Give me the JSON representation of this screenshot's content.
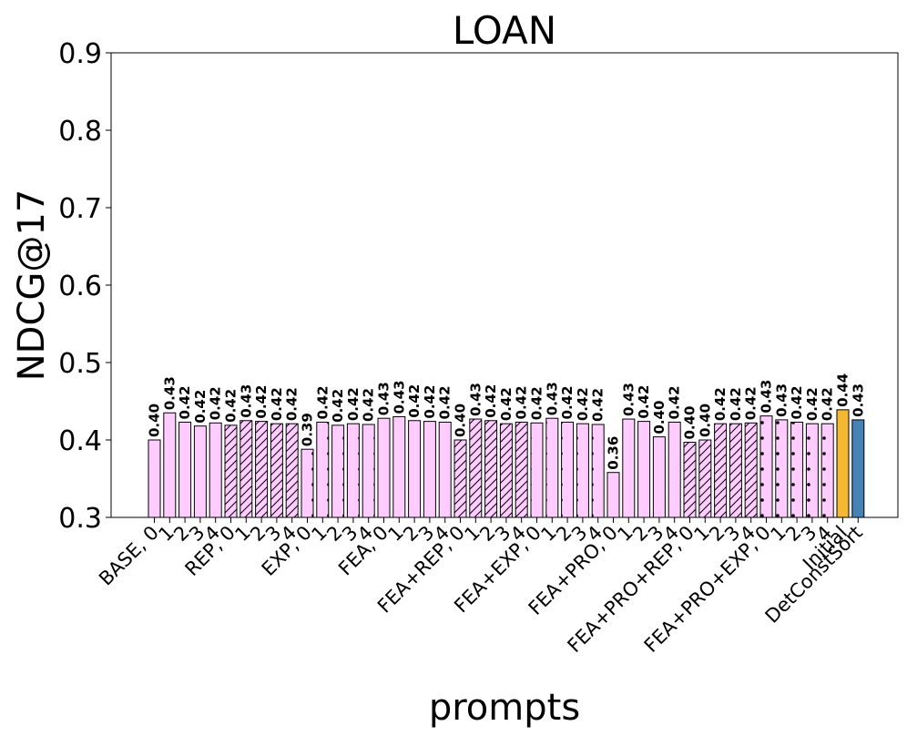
{
  "chart_data": {
    "type": "bar",
    "title": "LOAN",
    "xlabel": "prompts",
    "ylabel": "NDCG@17",
    "ylim": [
      0.3,
      0.9
    ],
    "yticks": [
      "0.3",
      "0.4",
      "0.5",
      "0.6",
      "0.7",
      "0.8",
      "0.9"
    ],
    "grid": false,
    "legend": "none",
    "colors": {
      "prompt_bar": "#ffccff",
      "initial_bar": "#f4b833",
      "detconstsort_bar": "#4682b4",
      "edge": "#000000"
    },
    "categories": [
      "BASE, 0",
      "1",
      "2",
      "3",
      "4",
      "REP, 0",
      "1",
      "2",
      "3",
      "4",
      "EXP, 0",
      "1",
      "2",
      "3",
      "4",
      "FEA, 0",
      "1",
      "2",
      "3",
      "4",
      "FEA+REP, 0",
      "1",
      "2",
      "3",
      "4",
      "FEA+EXP, 0",
      "1",
      "2",
      "3",
      "4",
      "FEA+PRO, 0",
      "1",
      "2",
      "3",
      "4",
      "FEA+PRO+REP, 0",
      "1",
      "2",
      "3",
      "4",
      "FEA+PRO+EXP, 0",
      "1",
      "2",
      "3",
      "4",
      "Initial",
      "DetConstSort"
    ],
    "values": [
      0.4,
      0.435,
      0.423,
      0.418,
      0.422,
      0.419,
      0.425,
      0.424,
      0.421,
      0.421,
      0.388,
      0.423,
      0.419,
      0.421,
      0.42,
      0.428,
      0.43,
      0.425,
      0.424,
      0.423,
      0.4,
      0.427,
      0.425,
      0.421,
      0.423,
      0.422,
      0.428,
      0.423,
      0.421,
      0.42,
      0.358,
      0.427,
      0.424,
      0.404,
      0.423,
      0.397,
      0.4,
      0.421,
      0.421,
      0.422,
      0.431,
      0.426,
      0.423,
      0.421,
      0.421,
      0.439,
      0.426
    ],
    "value_labels": [
      "0.40",
      "0.43",
      "0.42",
      "0.42",
      "0.42",
      "0.42",
      "0.43",
      "0.42",
      "0.42",
      "0.42",
      "0.39",
      "0.42",
      "0.42",
      "0.42",
      "0.42",
      "0.43",
      "0.43",
      "0.42",
      "0.42",
      "0.42",
      "0.40",
      "0.43",
      "0.42",
      "0.42",
      "0.42",
      "0.42",
      "0.43",
      "0.42",
      "0.42",
      "0.42",
      "0.36",
      "0.43",
      "0.42",
      "0.40",
      "0.42",
      "0.40",
      "0.40",
      "0.42",
      "0.42",
      "0.42",
      "0.43",
      "0.43",
      "0.42",
      "0.42",
      "0.42",
      "0.44",
      "0.43"
    ],
    "patterns": [
      "none",
      "none",
      "none",
      "none",
      "none",
      "hatch",
      "hatch",
      "hatch",
      "hatch",
      "hatch",
      "dots",
      "dots",
      "dots",
      "dots",
      "dots",
      "none",
      "none",
      "none",
      "none",
      "none",
      "hatch",
      "hatch",
      "hatch",
      "hatch",
      "hatch",
      "dots",
      "dots",
      "dots",
      "dots",
      "dots",
      "none",
      "none",
      "none",
      "none",
      "none",
      "hatch",
      "hatch",
      "hatch",
      "hatch",
      "hatch",
      "dots",
      "dots",
      "dots",
      "dots",
      "dots",
      "none",
      "none"
    ],
    "bar_kinds": [
      "prompt",
      "prompt",
      "prompt",
      "prompt",
      "prompt",
      "prompt",
      "prompt",
      "prompt",
      "prompt",
      "prompt",
      "prompt",
      "prompt",
      "prompt",
      "prompt",
      "prompt",
      "prompt",
      "prompt",
      "prompt",
      "prompt",
      "prompt",
      "prompt",
      "prompt",
      "prompt",
      "prompt",
      "prompt",
      "prompt",
      "prompt",
      "prompt",
      "prompt",
      "prompt",
      "prompt",
      "prompt",
      "prompt",
      "prompt",
      "prompt",
      "prompt",
      "prompt",
      "prompt",
      "prompt",
      "prompt",
      "prompt",
      "prompt",
      "prompt",
      "prompt",
      "prompt",
      "initial",
      "detconstsort"
    ]
  }
}
